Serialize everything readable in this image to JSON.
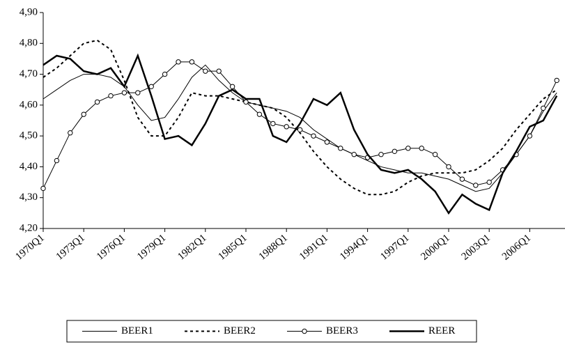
{
  "chart_data": {
    "type": "line",
    "categories": [
      "1970Q1",
      null,
      null,
      "1973Q1",
      null,
      null,
      "1976Q1",
      null,
      null,
      "1979Q1",
      null,
      null,
      "1982Q1",
      null,
      null,
      "1985Q1",
      null,
      null,
      "1988Q1",
      null,
      null,
      "1991Q1",
      null,
      null,
      "1994Q1",
      null,
      null,
      "1997Q1",
      null,
      null,
      "2000Q1",
      null,
      null,
      "2003Q1",
      null,
      null,
      "2006Q1",
      null,
      null
    ],
    "ylim": [
      4.2,
      4.9
    ],
    "yticks": [
      {
        "value": 4.2,
        "label": "4,20"
      },
      {
        "value": 4.3,
        "label": "4,30"
      },
      {
        "value": 4.4,
        "label": "4,40"
      },
      {
        "value": 4.5,
        "label": "4,50"
      },
      {
        "value": 4.6,
        "label": "4,60"
      },
      {
        "value": 4.7,
        "label": "4,70"
      },
      {
        "value": 4.8,
        "label": "4,80"
      },
      {
        "value": 4.9,
        "label": "4,90"
      }
    ],
    "grid": false,
    "legend": "bottom",
    "series": [
      {
        "name": "BEER1",
        "color": "#000000",
        "line_style": "solid",
        "line_width": 1,
        "marker": "none",
        "values": [
          4.62,
          4.65,
          4.68,
          4.7,
          4.7,
          4.69,
          4.66,
          4.6,
          4.55,
          4.56,
          4.62,
          4.69,
          4.73,
          4.68,
          4.64,
          4.61,
          4.6,
          4.59,
          4.58,
          4.56,
          4.52,
          4.49,
          4.46,
          4.44,
          4.42,
          4.4,
          4.39,
          4.38,
          4.38,
          4.37,
          4.36,
          4.34,
          4.32,
          4.33,
          4.38,
          4.44,
          4.5,
          4.58,
          4.64
        ]
      },
      {
        "name": "BEER2",
        "color": "#000000",
        "line_style": "dashed",
        "line_width": 2,
        "marker": "none",
        "values": [
          4.69,
          4.72,
          4.76,
          4.8,
          4.81,
          4.78,
          4.68,
          4.56,
          4.5,
          4.5,
          4.56,
          4.64,
          4.63,
          4.63,
          4.62,
          4.61,
          4.6,
          4.59,
          4.56,
          4.51,
          4.45,
          4.4,
          4.36,
          4.33,
          4.31,
          4.31,
          4.32,
          4.35,
          4.37,
          4.38,
          4.38,
          4.38,
          4.39,
          4.42,
          4.46,
          4.52,
          4.57,
          4.62,
          4.65
        ]
      },
      {
        "name": "BEER3",
        "color": "#000000",
        "line_style": "solid",
        "line_width": 1,
        "marker": "circle",
        "values": [
          4.33,
          4.42,
          4.51,
          4.57,
          4.61,
          4.63,
          4.64,
          4.64,
          4.66,
          4.7,
          4.74,
          4.74,
          4.71,
          4.71,
          4.66,
          4.61,
          4.57,
          4.54,
          4.53,
          4.52,
          4.5,
          4.48,
          4.46,
          4.44,
          4.43,
          4.44,
          4.45,
          4.46,
          4.46,
          4.44,
          4.4,
          4.36,
          4.34,
          4.35,
          4.39,
          4.44,
          4.5,
          4.59,
          4.68
        ]
      },
      {
        "name": "REER",
        "color": "#000000",
        "line_style": "solid",
        "line_width": 2.5,
        "marker": "none",
        "values": [
          4.73,
          4.76,
          4.75,
          4.71,
          4.7,
          4.72,
          4.66,
          4.76,
          4.63,
          4.49,
          4.5,
          4.47,
          4.54,
          4.63,
          4.65,
          4.62,
          4.62,
          4.5,
          4.48,
          4.54,
          4.62,
          4.6,
          4.64,
          4.52,
          4.44,
          4.39,
          4.38,
          4.39,
          4.36,
          4.32,
          4.25,
          4.31,
          4.28,
          4.26,
          4.38,
          4.45,
          4.53,
          4.55,
          4.63
        ]
      }
    ]
  }
}
